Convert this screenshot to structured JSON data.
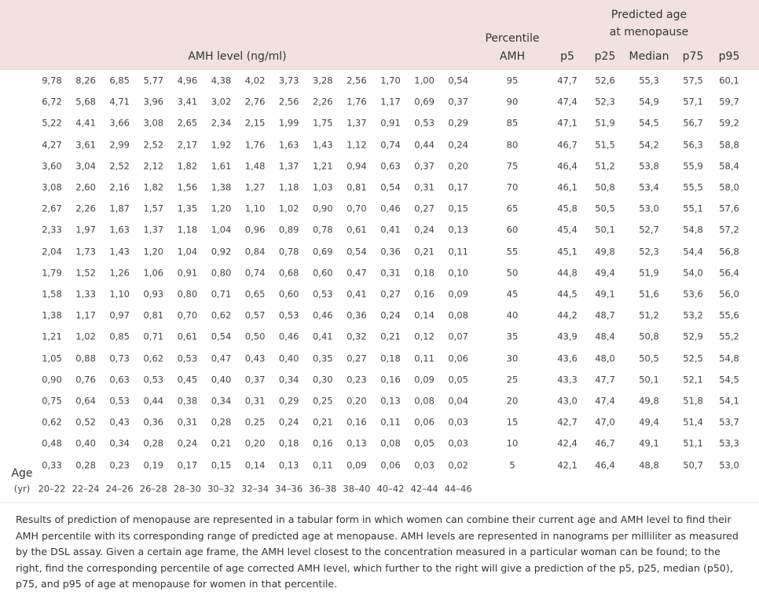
{
  "header": {
    "amh_level": "AMH level (ng/ml)",
    "percentile": [
      "Percentile",
      "AMH"
    ],
    "predicted": [
      "Predicted age",
      "at menopause"
    ],
    "predicted_columns": [
      "p5",
      "p25",
      "Median",
      "p75",
      "p95"
    ]
  },
  "table": {
    "rows": [
      {
        "amh": [
          "9,78",
          "8,26",
          "6,85",
          "5,77",
          "4,96",
          "4,38",
          "4,02",
          "3,73",
          "3,28",
          "2,56",
          "1,70",
          "1,00",
          "0,54"
        ],
        "percentile": 95,
        "predicted": [
          "47,7",
          "52,6",
          "55,3",
          "57,5",
          "60,1"
        ]
      },
      {
        "amh": [
          "6,72",
          "5,68",
          "4,71",
          "3,96",
          "3,41",
          "3,02",
          "2,76",
          "2,56",
          "2,26",
          "1,76",
          "1,17",
          "0,69",
          "0,37"
        ],
        "percentile": 90,
        "predicted": [
          "47,4",
          "52,3",
          "54,9",
          "57,1",
          "59,7"
        ]
      },
      {
        "amh": [
          "5,22",
          "4,41",
          "3,66",
          "3,08",
          "2,65",
          "2,34",
          "2,15",
          "1,99",
          "1,75",
          "1,37",
          "0,91",
          "0,53",
          "0,29"
        ],
        "percentile": 85,
        "predicted": [
          "47,1",
          "51,9",
          "54,5",
          "56,7",
          "59,2"
        ]
      },
      {
        "amh": [
          "4,27",
          "3,61",
          "2,99",
          "2,52",
          "2,17",
          "1,92",
          "1,76",
          "1,63",
          "1,43",
          "1,12",
          "0,74",
          "0,44",
          "0,24"
        ],
        "percentile": 80,
        "predicted": [
          "46,7",
          "51,5",
          "54,2",
          "56,3",
          "58,8"
        ]
      },
      {
        "amh": [
          "3,60",
          "3,04",
          "2,52",
          "2,12",
          "1,82",
          "1,61",
          "1,48",
          "1,37",
          "1,21",
          "0,94",
          "0,63",
          "0,37",
          "0,20"
        ],
        "percentile": 75,
        "predicted": [
          "46,4",
          "51,2",
          "53,8",
          "55,9",
          "58,4"
        ]
      },
      {
        "amh": [
          "3,08",
          "2,60",
          "2,16",
          "1,82",
          "1,56",
          "1,38",
          "1,27",
          "1,18",
          "1,03",
          "0,81",
          "0,54",
          "0,31",
          "0,17"
        ],
        "percentile": 70,
        "predicted": [
          "46,1",
          "50,8",
          "53,4",
          "55,5",
          "58,0"
        ]
      },
      {
        "amh": [
          "2,67",
          "2,26",
          "1,87",
          "1,57",
          "1,35",
          "1,20",
          "1,10",
          "1,02",
          "0,90",
          "0,70",
          "0,46",
          "0,27",
          "0,15"
        ],
        "percentile": 65,
        "predicted": [
          "45,8",
          "50,5",
          "53,0",
          "55,1",
          "57,6"
        ]
      },
      {
        "amh": [
          "2,33",
          "1,97",
          "1,63",
          "1,37",
          "1,18",
          "1,04",
          "0,96",
          "0,89",
          "0,78",
          "0,61",
          "0,41",
          "0,24",
          "0,13"
        ],
        "percentile": 60,
        "predicted": [
          "45,4",
          "50,1",
          "52,7",
          "54,8",
          "57,2"
        ]
      },
      {
        "amh": [
          "2,04",
          "1,73",
          "1,43",
          "1,20",
          "1,04",
          "0,92",
          "0,84",
          "0,78",
          "0,69",
          "0,54",
          "0,36",
          "0,21",
          "0,11"
        ],
        "percentile": 55,
        "predicted": [
          "45,1",
          "49,8",
          "52,3",
          "54,4",
          "56,8"
        ]
      },
      {
        "amh": [
          "1,79",
          "1,52",
          "1,26",
          "1,06",
          "0,91",
          "0,80",
          "0,74",
          "0,68",
          "0,60",
          "0,47",
          "0,31",
          "0,18",
          "0,10"
        ],
        "percentile": 50,
        "predicted": [
          "44,8",
          "49,4",
          "51,9",
          "54,0",
          "56,4"
        ]
      },
      {
        "amh": [
          "1,58",
          "1,33",
          "1,10",
          "0,93",
          "0,80",
          "0,71",
          "0,65",
          "0,60",
          "0,53",
          "0,41",
          "0,27",
          "0,16",
          "0,09"
        ],
        "percentile": 45,
        "predicted": [
          "44,5",
          "49,1",
          "51,6",
          "53,6",
          "56,0"
        ]
      },
      {
        "amh": [
          "1,38",
          "1,17",
          "0,97",
          "0,81",
          "0,70",
          "0,62",
          "0,57",
          "0,53",
          "0,46",
          "0,36",
          "0,24",
          "0,14",
          "0,08"
        ],
        "percentile": 40,
        "predicted": [
          "44,2",
          "48,7",
          "51,2",
          "53,2",
          "55,6"
        ]
      },
      {
        "amh": [
          "1,21",
          "1,02",
          "0,85",
          "0,71",
          "0,61",
          "0,54",
          "0,50",
          "0,46",
          "0,41",
          "0,32",
          "0,21",
          "0,12",
          "0,07"
        ],
        "percentile": 35,
        "predicted": [
          "43,9",
          "48,4",
          "50,8",
          "52,9",
          "55,2"
        ]
      },
      {
        "amh": [
          "1,05",
          "0,88",
          "0,73",
          "0,62",
          "0,53",
          "0,47",
          "0,43",
          "0,40",
          "0,35",
          "0,27",
          "0,18",
          "0,11",
          "0,06"
        ],
        "percentile": 30,
        "predicted": [
          "43,6",
          "48,0",
          "50,5",
          "52,5",
          "54,8"
        ]
      },
      {
        "amh": [
          "0,90",
          "0,76",
          "0,63",
          "0,53",
          "0,45",
          "0,40",
          "0,37",
          "0,34",
          "0,30",
          "0,23",
          "0,16",
          "0,09",
          "0,05"
        ],
        "percentile": 25,
        "predicted": [
          "43,3",
          "47,7",
          "50,1",
          "52,1",
          "54,5"
        ]
      },
      {
        "amh": [
          "0,75",
          "0,64",
          "0,53",
          "0,44",
          "0,38",
          "0,34",
          "0,31",
          "0,29",
          "0,25",
          "0,20",
          "0,13",
          "0,08",
          "0,04"
        ],
        "percentile": 20,
        "predicted": [
          "43,0",
          "47,4",
          "49,8",
          "51,8",
          "54,1"
        ]
      },
      {
        "amh": [
          "0,62",
          "0,52",
          "0,43",
          "0,36",
          "0,31",
          "0,28",
          "0,25",
          "0,24",
          "0,21",
          "0,16",
          "0,11",
          "0,06",
          "0,03"
        ],
        "percentile": 15,
        "predicted": [
          "42,7",
          "47,0",
          "49,4",
          "51,4",
          "53,7"
        ]
      },
      {
        "amh": [
          "0,48",
          "0,40",
          "0,34",
          "0,28",
          "0,24",
          "0,21",
          "0,20",
          "0,18",
          "0,16",
          "0,13",
          "0,08",
          "0,05",
          "0,03"
        ],
        "percentile": 10,
        "predicted": [
          "42,4",
          "46,7",
          "49,1",
          "51,1",
          "53,3"
        ]
      },
      {
        "amh": [
          "0,33",
          "0,28",
          "0,23",
          "0,19",
          "0,17",
          "0,15",
          "0,14",
          "0,13",
          "0,11",
          "0,09",
          "0,06",
          "0,03",
          "0,02"
        ],
        "percentile": 5,
        "predicted": [
          "42,1",
          "46,4",
          "48,8",
          "50,7",
          "53,0"
        ]
      }
    ],
    "age_label": [
      "Age",
      "(yr)"
    ],
    "ages": [
      "20–22",
      "22–24",
      "24–26",
      "26–28",
      "28–30",
      "30–32",
      "32–34",
      "34–36",
      "36–38",
      "38–40",
      "40–42",
      "42–44",
      "44–46"
    ]
  },
  "footnote": "Results of prediction of menopause are represented in a tabular form in which women can combine their current age and AMH level to find their AMH percentile with its corresponding range of predicted age at menopause. AMH levels are represented in nanograms per milliliter as measured by the DSL assay. Given a certain age frame, the AMH level closest to the concentration measured in a particular woman can be found; to the right, find the corresponding percentile of age corrected AMH level, which further to the right will give a prediction of the p5, p25, median (p50), p75, and p95 of age at menopause for women in that percentile."
}
